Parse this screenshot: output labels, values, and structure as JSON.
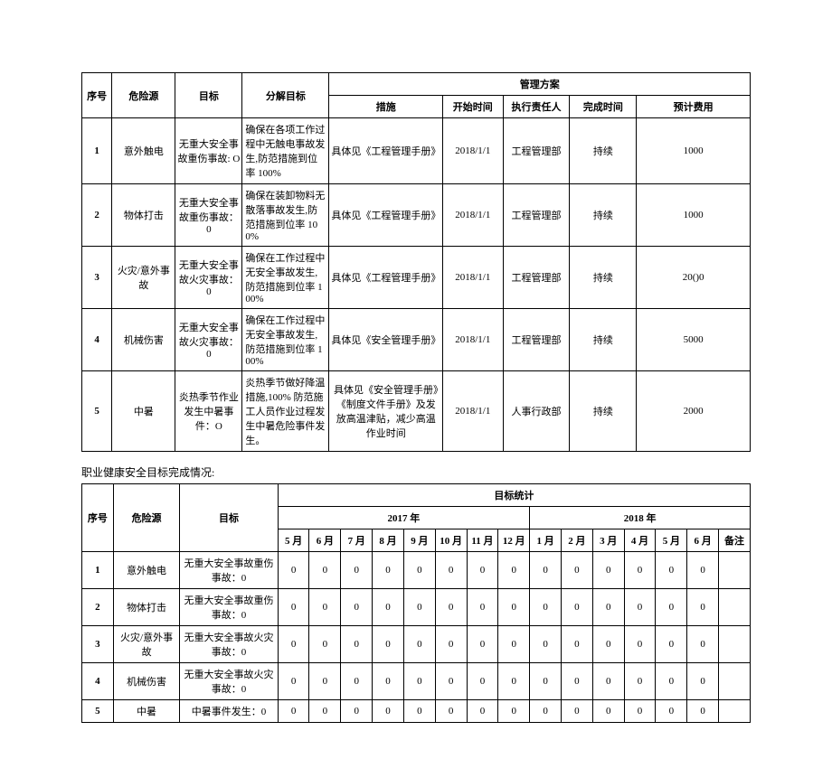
{
  "table1": {
    "headers": {
      "seq": "序号",
      "risk": "危险源",
      "goal": "目标",
      "subgoal": "分解目标",
      "plan": "管理方案",
      "measure": "措施",
      "start": "开始时间",
      "person": "执行责任人",
      "finish": "完成时间",
      "cost": "预计费用"
    },
    "rows": [
      {
        "seq": "1",
        "risk": "意外触电",
        "goal": "无重大安全事故重伤事故: O",
        "subgoal": "确保在各项工作过程中无触电事故发生,防范措施到位率 100%",
        "measure": "具体见《工程管理手册》",
        "start": "2018/1/1",
        "person": "工程管理部",
        "finish": "持续",
        "cost": "1000"
      },
      {
        "seq": "2",
        "risk": "物体打击",
        "goal": "无重大安全事故重伤事故：0",
        "subgoal": "确保在装卸物料无散落事故发生,防范措施到位率 100%",
        "measure": "具体见《工程管理手册》",
        "start": "2018/1/1",
        "person": "工程管理部",
        "finish": "持续",
        "cost": "1000"
      },
      {
        "seq": "3",
        "risk": "火灾/意外事故",
        "goal": "无重大安全事故火灾事故：0",
        "subgoal": "确保在工作过程中无安全事故发生,防范措施到位率 100%",
        "measure": "具体见《工程管理手册》",
        "start": "2018/1/1",
        "person": "工程管理部",
        "finish": "持续",
        "cost": "20()0"
      },
      {
        "seq": "4",
        "risk": "机械伤害",
        "goal": "无重大安全事故火灾事故：0",
        "subgoal": "确保在工作过程中无安全事故发生,防范措施到位率 100%",
        "measure": "具体见《安全管理手册》",
        "start": "2018/1/1",
        "person": "工程管理部",
        "finish": "持续",
        "cost": "5000"
      },
      {
        "seq": "5",
        "risk": "中暑",
        "goal": "炎热季节作业发生中暑事件：O",
        "subgoal": "炎热季节做好降温措施,100% 防范施工人员作业过程发生中暑危险事件发生。",
        "measure": "具体见《安全管理手册》《制度文件手册》及发放高温津贴，减少高温作业时间",
        "start": "2018/1/1",
        "person": "人事行政部",
        "finish": "持续",
        "cost": "2000"
      }
    ]
  },
  "section_title": "职业健康安全目标完成情况:",
  "table2": {
    "headers": {
      "seq": "序号",
      "risk": "危险源",
      "goal": "目标",
      "stats": "目标统计",
      "y2017": "2017 年",
      "y2018": "2018 年",
      "remark": "备注",
      "m5": "5 月",
      "m6": "6 月",
      "m7": "7 月",
      "m8": "8 月",
      "m9": "9 月",
      "m10": "10 月",
      "m11": "11 月",
      "m12": "12 月",
      "n1": "1 月",
      "n2": "2 月",
      "n3": "3 月",
      "n4": "4 月",
      "n5": "5 月",
      "n6": "6 月"
    },
    "rows": [
      {
        "seq": "1",
        "risk": "意外触电",
        "goal": "无重大安全事故重伤事故：0",
        "vals": [
          "0",
          "0",
          "0",
          "0",
          "0",
          "0",
          "0",
          "0",
          "0",
          "0",
          "0",
          "0",
          "0",
          "0"
        ],
        "remark": ""
      },
      {
        "seq": "2",
        "risk": "物体打击",
        "goal": "无重大安全事故重伤事故：0",
        "vals": [
          "0",
          "0",
          "0",
          "0",
          "0",
          "0",
          "0",
          "0",
          "0",
          "0",
          "0",
          "0",
          "0",
          "0"
        ],
        "remark": ""
      },
      {
        "seq": "3",
        "risk": "火灾/意外事故",
        "goal": "无重大安全事故火灾事故：0",
        "vals": [
          "0",
          "0",
          "0",
          "0",
          "0",
          "0",
          "0",
          "0",
          "0",
          "0",
          "0",
          "0",
          "0",
          "0"
        ],
        "remark": ""
      },
      {
        "seq": "4",
        "risk": "机械伤害",
        "goal": "无重大安全事故火灾事故：0",
        "vals": [
          "0",
          "0",
          "0",
          "0",
          "0",
          "0",
          "0",
          "0",
          "0",
          "0",
          "0",
          "0",
          "0",
          "0"
        ],
        "remark": ""
      },
      {
        "seq": "5",
        "risk": "中暑",
        "goal": "中暑事件发生：0",
        "vals": [
          "0",
          "0",
          "0",
          "0",
          "0",
          "0",
          "0",
          "0",
          "0",
          "0",
          "0",
          "0",
          "0",
          "0"
        ],
        "remark": ""
      }
    ]
  }
}
